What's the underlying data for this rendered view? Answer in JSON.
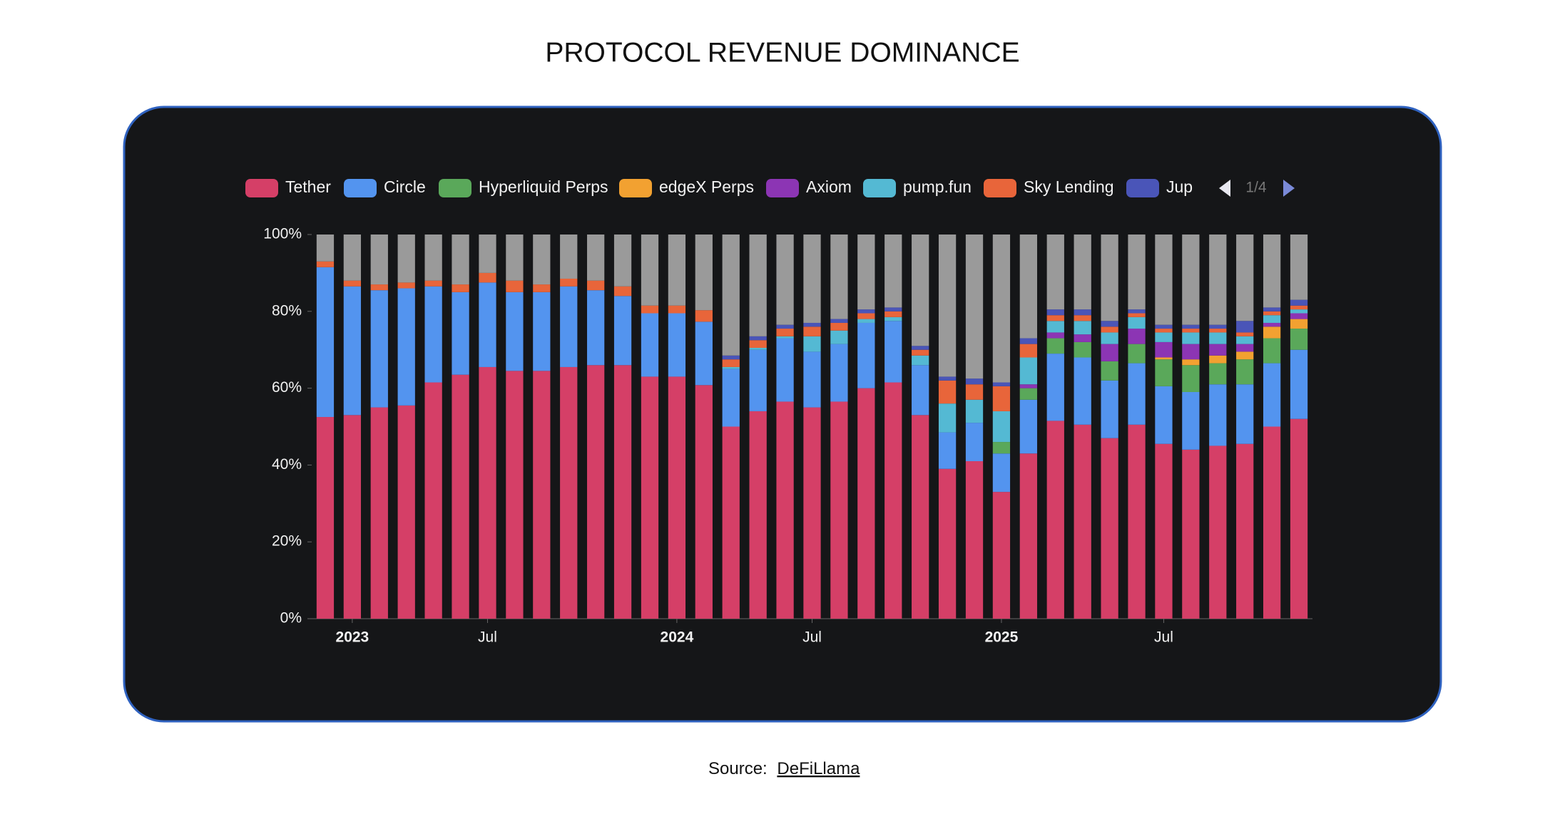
{
  "title": "PROTOCOL REVENUE DOMINANCE",
  "chart_data": {
    "type": "stacked_bar",
    "categories": [
      null,
      "2023",
      null,
      null,
      null,
      null,
      "Jul",
      null,
      null,
      null,
      null,
      null,
      null,
      "2024",
      null,
      null,
      null,
      null,
      "Jul",
      null,
      null,
      null,
      null,
      null,
      null,
      "2025",
      null,
      null,
      null,
      null,
      null,
      "Jul",
      null,
      null,
      null,
      null,
      null
    ],
    "series": [
      {
        "name": "Tether",
        "color": "#d53f67",
        "values": [
          52.5,
          53,
          55,
          55.5,
          61.5,
          63.5,
          65.5,
          64.5,
          64.5,
          65.5,
          66,
          66,
          63,
          63,
          60.8,
          50,
          54,
          56.5,
          55,
          56.5,
          60,
          61.5,
          53,
          39,
          41,
          33,
          43,
          51.5,
          50.5,
          47,
          50.5,
          45.5,
          44,
          45,
          45.5,
          50,
          52
        ]
      },
      {
        "name": "Circle",
        "color": "#5394ef",
        "values": [
          39,
          33.5,
          30.5,
          30.5,
          25,
          21.5,
          22,
          20.5,
          20.5,
          21,
          19.5,
          18,
          16.5,
          16.5,
          16.5,
          15,
          16,
          16.5,
          14.5,
          15,
          17,
          16,
          13,
          9.5,
          10,
          10,
          14,
          17.5,
          17.5,
          15,
          16,
          15,
          15,
          16,
          15.5,
          16.5,
          18
        ]
      },
      {
        "name": "Hyperliquid Perps",
        "color": "#5aa85a",
        "values": [
          0,
          0,
          0,
          0,
          0,
          0,
          0,
          0,
          0,
          0,
          0,
          0,
          0,
          0,
          0,
          0,
          0,
          0,
          0,
          0,
          0,
          0,
          0,
          0,
          0,
          3,
          3,
          4,
          4,
          5,
          5,
          7,
          7,
          5.5,
          6.5,
          6.5,
          5.5
        ]
      },
      {
        "name": "edgeX Perps",
        "color": "#f2a131",
        "values": [
          0,
          0,
          0,
          0,
          0,
          0,
          0,
          0,
          0,
          0,
          0,
          0,
          0,
          0,
          0,
          0,
          0,
          0,
          0,
          0,
          0,
          0,
          0,
          0,
          0,
          0,
          0,
          0,
          0,
          0,
          0,
          0.5,
          1.5,
          2,
          2,
          3,
          2.5
        ]
      },
      {
        "name": "Axiom",
        "color": "#8c35b4",
        "values": [
          0,
          0,
          0,
          0,
          0,
          0,
          0,
          0,
          0,
          0,
          0,
          0,
          0,
          0,
          0,
          0,
          0,
          0,
          0,
          0,
          0,
          0,
          0,
          0,
          0,
          0,
          1,
          1.5,
          2,
          4.5,
          4,
          4,
          4,
          3,
          2,
          1,
          1.5
        ]
      },
      {
        "name": "pump.fun",
        "color": "#54b9d3",
        "values": [
          0,
          0,
          0,
          0,
          0,
          0,
          0,
          0,
          0,
          0,
          0,
          0,
          0,
          0,
          0,
          0.5,
          0.5,
          0.5,
          4,
          3.5,
          1,
          1,
          2.5,
          7.5,
          6,
          8,
          7,
          3,
          3.5,
          3,
          3,
          2.5,
          3,
          3,
          2,
          2,
          1
        ]
      },
      {
        "name": "Sky Lending",
        "color": "#e8653a",
        "values": [
          1.5,
          1.5,
          1.5,
          1.5,
          1.5,
          2,
          2.5,
          3,
          2,
          2,
          2.5,
          2.5,
          2,
          2,
          3,
          2,
          2,
          2,
          2.5,
          2,
          1.5,
          1.5,
          1.5,
          6,
          4,
          6.5,
          3.5,
          1.5,
          1.5,
          1.5,
          1,
          1,
          1,
          1,
          1,
          1,
          1
        ]
      },
      {
        "name": "Jup",
        "color": "#4a55b8",
        "values": [
          0,
          0,
          0,
          0,
          0,
          0,
          0,
          0,
          0,
          0,
          0,
          0,
          0,
          0,
          0,
          1,
          1,
          1,
          1,
          1,
          1,
          1,
          1,
          1,
          1.5,
          1,
          1.5,
          1.5,
          1.5,
          1.5,
          1,
          1,
          1,
          1,
          3,
          1,
          1.5
        ]
      },
      {
        "color": "#9a9a9a",
        "values": [
          7,
          12,
          13,
          12.5,
          12,
          13,
          10,
          12,
          13,
          11.5,
          12,
          13.5,
          18.5,
          18.5,
          19.7,
          31.5,
          26.5,
          23.5,
          23,
          22,
          19.5,
          19,
          29,
          37,
          37.5,
          38.5,
          27,
          19.5,
          19.5,
          22.5,
          19.5,
          23.5,
          23.5,
          23.5,
          22.5,
          19,
          17
        ]
      }
    ],
    "ylim": [
      0,
      100
    ],
    "yticks": [
      {
        "value": 0,
        "label": "0%"
      },
      {
        "value": 20,
        "label": "20%"
      },
      {
        "value": 40,
        "label": "40%"
      },
      {
        "value": 60,
        "label": "60%"
      },
      {
        "value": 80,
        "label": "80%"
      },
      {
        "value": 100,
        "label": "100%"
      }
    ],
    "legend_page": "1/4"
  },
  "source": {
    "prefix": "Source:",
    "link": "DeFiLlama"
  }
}
